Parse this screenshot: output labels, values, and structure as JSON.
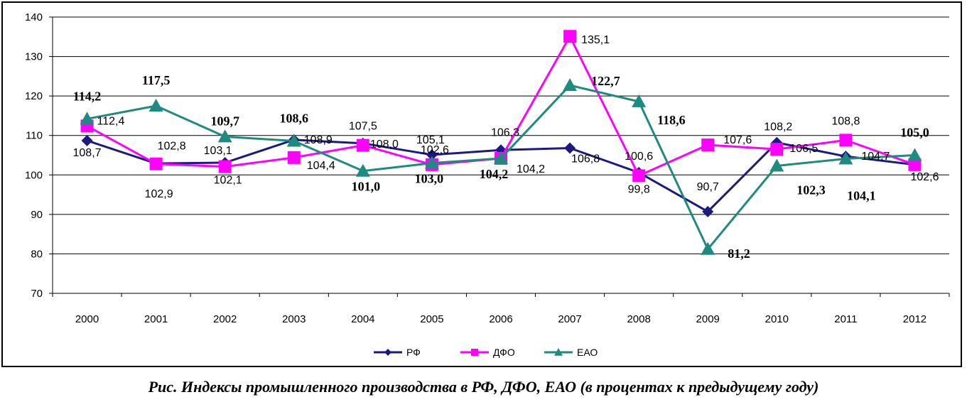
{
  "caption": "Рис. Индексы промышленного производства в РФ, ДФО, ЕАО (в процентах к предыдущему году)",
  "chart_data": {
    "type": "line",
    "categories": [
      "2000",
      "2001",
      "2002",
      "2003",
      "2004",
      "2005",
      "2006",
      "2007",
      "2008",
      "2009",
      "2010",
      "2011",
      "2012"
    ],
    "ylim": [
      70,
      140
    ],
    "yticks": [
      70,
      80,
      90,
      100,
      110,
      120,
      130,
      140
    ],
    "ytick_labels": [
      "70",
      "80",
      "90",
      "100",
      "110",
      "120",
      "130",
      "140"
    ],
    "grid": true,
    "legend_position": "bottom",
    "series": [
      {
        "name": "РФ",
        "color": "#1a1a80",
        "marker": "diamond",
        "values": [
          108.7,
          102.9,
          103.1,
          108.9,
          108.0,
          105.1,
          106.3,
          106.8,
          100.6,
          90.7,
          108.2,
          104.7,
          102.6
        ],
        "labels": [
          "108,7",
          "",
          "103,1",
          "108,9",
          "108,0",
          "105,1",
          "106,3",
          "106,8",
          "100,6",
          "90,7",
          "108,2",
          "104,7",
          "102,6"
        ]
      },
      {
        "name": "ДФО",
        "color": "#ff00ff",
        "marker": "square",
        "values": [
          112.4,
          102.8,
          102.1,
          104.4,
          107.5,
          102.6,
          104.2,
          135.1,
          99.8,
          107.6,
          106.5,
          108.8,
          102.6
        ],
        "labels": [
          "112,4",
          "102,8",
          "102,1",
          "104,4",
          "107,5",
          "102,6",
          "104,2",
          "135,1",
          "99,8",
          "107,6",
          "106,5",
          "108,8",
          ""
        ]
      },
      {
        "name": "ЕАО",
        "color": "#1f8a80",
        "marker": "triangle",
        "values": [
          114.2,
          117.5,
          109.7,
          108.6,
          101.0,
          103.0,
          104.2,
          122.7,
          118.6,
          81.2,
          102.3,
          104.1,
          105.0
        ],
        "labels": [
          "114,2",
          "117,5",
          "109,7",
          "108,6",
          "101,0",
          "103,0",
          "104,2",
          "122,7",
          "118,6",
          "81,2",
          "102,3",
          "104,1",
          "105,0"
        ]
      }
    ],
    "extra_labels": [
      {
        "category": "2001",
        "text": "102,9"
      }
    ]
  }
}
